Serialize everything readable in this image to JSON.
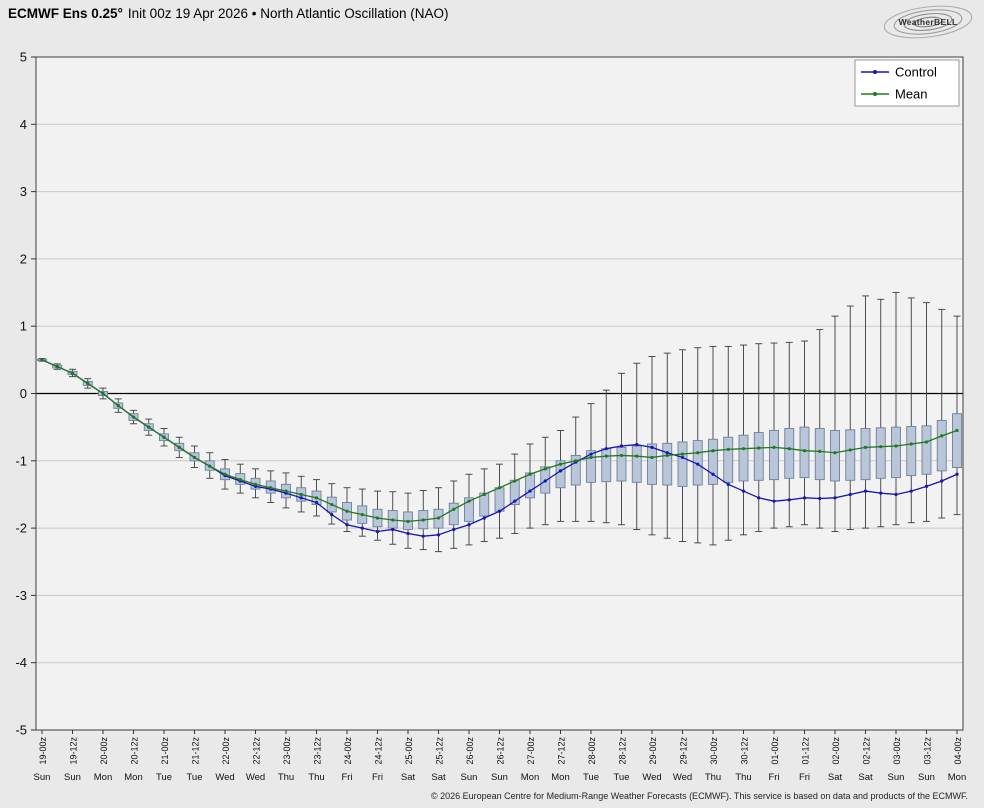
{
  "header": {
    "title_bold": "ECMWF Ens 0.25°",
    "title_rest": "Init 00z 19 Apr 2026 • North Atlantic Oscillation (NAO)",
    "logo_text": "WeatherBELL"
  },
  "footer": {
    "copyright": "© 2026 European Centre for Medium-Range Weather Forecasts (ECMWF). This service is based on data and products of the ECMWF."
  },
  "chart_data": {
    "type": "box+line",
    "title": "ECMWF Ens 0.25° Init 00z 19 Apr 2026 • North Atlantic Oscillation (NAO)",
    "ylabel": "",
    "xlabel": "",
    "ylim": [
      -5,
      5
    ],
    "yticks": [
      5,
      4,
      3,
      2,
      1,
      0,
      -1,
      -2,
      -3,
      -4,
      -5
    ],
    "zero_line": true,
    "grid": "horizontal",
    "x_step_hours": 6,
    "x_tick_times": [
      "19-00z",
      "19-12z",
      "20-00z",
      "20-12z",
      "21-00z",
      "21-12z",
      "22-00z",
      "22-12z",
      "23-00z",
      "23-12z",
      "24-00z",
      "24-12z",
      "25-00z",
      "25-12z",
      "26-00z",
      "26-12z",
      "27-00z",
      "27-12z",
      "28-00z",
      "28-12z",
      "29-00z",
      "29-12z",
      "30-00z",
      "30-12z",
      "01-00z",
      "01-12z",
      "02-00z",
      "02-12z",
      "03-00z",
      "03-12z",
      "04-00z"
    ],
    "x_tick_days": [
      "Sun",
      "Sun",
      "Mon",
      "Mon",
      "Tue",
      "Tue",
      "Wed",
      "Wed",
      "Thu",
      "Thu",
      "Fri",
      "Fri",
      "Sat",
      "Sat",
      "Sun",
      "Sun",
      "Mon",
      "Mon",
      "Tue",
      "Tue",
      "Wed",
      "Wed",
      "Thu",
      "Thu",
      "Fri",
      "Fri",
      "Sat",
      "Sat",
      "Sun",
      "Sun",
      "Mon"
    ],
    "legend": {
      "position": "top-right",
      "entries": [
        "Control",
        "Mean"
      ]
    },
    "series": [
      {
        "name": "Control",
        "color": "#1515b5",
        "values": [
          0.5,
          0.4,
          0.3,
          0.15,
          0.0,
          -0.18,
          -0.35,
          -0.5,
          -0.65,
          -0.8,
          -0.95,
          -1.08,
          -1.22,
          -1.3,
          -1.38,
          -1.42,
          -1.48,
          -1.55,
          -1.62,
          -1.8,
          -1.95,
          -2.0,
          -2.05,
          -2.02,
          -2.08,
          -2.12,
          -2.1,
          -2.02,
          -1.95,
          -1.85,
          -1.75,
          -1.6,
          -1.45,
          -1.3,
          -1.15,
          -1.02,
          -0.9,
          -0.82,
          -0.78,
          -0.76,
          -0.8,
          -0.88,
          -0.95,
          -1.05,
          -1.2,
          -1.35,
          -1.45,
          -1.55,
          -1.6,
          -1.58,
          -1.55,
          -1.56,
          -1.55,
          -1.5,
          -1.45,
          -1.48,
          -1.5,
          -1.45,
          -1.38,
          -1.3,
          -1.2
        ]
      },
      {
        "name": "Mean",
        "color": "#1f7a1f",
        "values": [
          0.5,
          0.4,
          0.3,
          0.15,
          0.0,
          -0.18,
          -0.35,
          -0.5,
          -0.65,
          -0.8,
          -0.95,
          -1.08,
          -1.2,
          -1.28,
          -1.35,
          -1.4,
          -1.45,
          -1.5,
          -1.55,
          -1.65,
          -1.75,
          -1.8,
          -1.85,
          -1.88,
          -1.9,
          -1.88,
          -1.85,
          -1.72,
          -1.6,
          -1.5,
          -1.4,
          -1.3,
          -1.2,
          -1.12,
          -1.05,
          -1.0,
          -0.95,
          -0.93,
          -0.92,
          -0.93,
          -0.95,
          -0.92,
          -0.9,
          -0.88,
          -0.85,
          -0.83,
          -0.82,
          -0.81,
          -0.8,
          -0.82,
          -0.85,
          -0.86,
          -0.88,
          -0.84,
          -0.8,
          -0.79,
          -0.78,
          -0.75,
          -0.72,
          -0.63,
          -0.55
        ]
      }
    ],
    "boxes": {
      "description": "Ensemble spread per 6h step: [whisker_low, box_low, box_high, whisker_high]",
      "color_fill": "#b9c6da",
      "color_edge": "#6e7f99",
      "whisker_color": "#3c3c3c",
      "values": [
        [
          0.48,
          0.49,
          0.51,
          0.52
        ],
        [
          0.36,
          0.38,
          0.42,
          0.44
        ],
        [
          0.25,
          0.28,
          0.33,
          0.36
        ],
        [
          0.08,
          0.12,
          0.18,
          0.22
        ],
        [
          -0.08,
          -0.03,
          0.03,
          0.08
        ],
        [
          -0.28,
          -0.22,
          -0.14,
          -0.08
        ],
        [
          -0.45,
          -0.4,
          -0.3,
          -0.25
        ],
        [
          -0.62,
          -0.55,
          -0.45,
          -0.38
        ],
        [
          -0.78,
          -0.7,
          -0.6,
          -0.52
        ],
        [
          -0.95,
          -0.85,
          -0.74,
          -0.65
        ],
        [
          -1.1,
          -1.0,
          -0.88,
          -0.78
        ],
        [
          -1.26,
          -1.14,
          -1.0,
          -0.88
        ],
        [
          -1.42,
          -1.28,
          -1.12,
          -0.98
        ],
        [
          -1.48,
          -1.35,
          -1.19,
          -1.05
        ],
        [
          -1.55,
          -1.42,
          -1.26,
          -1.12
        ],
        [
          -1.62,
          -1.48,
          -1.3,
          -1.15
        ],
        [
          -1.7,
          -1.55,
          -1.35,
          -1.18
        ],
        [
          -1.76,
          -1.6,
          -1.4,
          -1.23
        ],
        [
          -1.82,
          -1.65,
          -1.45,
          -1.28
        ],
        [
          -1.94,
          -1.76,
          -1.54,
          -1.34
        ],
        [
          -2.05,
          -1.88,
          -1.62,
          -1.4
        ],
        [
          -2.12,
          -1.93,
          -1.67,
          -1.42
        ],
        [
          -2.18,
          -1.98,
          -1.72,
          -1.45
        ],
        [
          -2.24,
          -2.0,
          -1.74,
          -1.46
        ],
        [
          -2.3,
          -2.02,
          -1.76,
          -1.48
        ],
        [
          -2.32,
          -2.01,
          -1.74,
          -1.44
        ],
        [
          -2.35,
          -2.0,
          -1.72,
          -1.4
        ],
        [
          -2.3,
          -1.95,
          -1.63,
          -1.3
        ],
        [
          -2.25,
          -1.9,
          -1.55,
          -1.2
        ],
        [
          -2.2,
          -1.82,
          -1.48,
          -1.12
        ],
        [
          -2.15,
          -1.75,
          -1.4,
          -1.05
        ],
        [
          -2.08,
          -1.65,
          -1.29,
          -0.9
        ],
        [
          -2.0,
          -1.55,
          -1.18,
          -0.75
        ],
        [
          -1.95,
          -1.48,
          -1.09,
          -0.65
        ],
        [
          -1.9,
          -1.4,
          -1.0,
          -0.55
        ],
        [
          -1.9,
          -1.36,
          -0.92,
          -0.35
        ],
        [
          -1.9,
          -1.32,
          -0.85,
          -0.15
        ],
        [
          -1.92,
          -1.31,
          -0.82,
          0.05
        ],
        [
          -1.95,
          -1.3,
          -0.8,
          0.3
        ],
        [
          -2.02,
          -1.32,
          -0.78,
          0.45
        ],
        [
          -2.1,
          -1.35,
          -0.75,
          0.55
        ],
        [
          -2.15,
          -1.36,
          -0.74,
          0.6
        ],
        [
          -2.2,
          -1.38,
          -0.72,
          0.65
        ],
        [
          -2.22,
          -1.36,
          -0.7,
          0.68
        ],
        [
          -2.25,
          -1.35,
          -0.68,
          0.7
        ],
        [
          -2.18,
          -1.32,
          -0.65,
          0.7
        ],
        [
          -2.1,
          -1.3,
          -0.62,
          0.72
        ],
        [
          -2.05,
          -1.29,
          -0.58,
          0.74
        ],
        [
          -2.0,
          -1.28,
          -0.55,
          0.75
        ],
        [
          -1.98,
          -1.26,
          -0.52,
          0.76
        ],
        [
          -1.95,
          -1.25,
          -0.5,
          0.78
        ],
        [
          -2.0,
          -1.28,
          -0.52,
          0.95
        ],
        [
          -2.05,
          -1.3,
          -0.55,
          1.15
        ],
        [
          -2.02,
          -1.29,
          -0.54,
          1.3
        ],
        [
          -2.0,
          -1.28,
          -0.52,
          1.45
        ],
        [
          -1.98,
          -1.26,
          -0.51,
          1.4
        ],
        [
          -1.95,
          -1.25,
          -0.5,
          1.5
        ],
        [
          -1.92,
          -1.22,
          -0.49,
          1.42
        ],
        [
          -1.9,
          -1.2,
          -0.48,
          1.35
        ],
        [
          -1.85,
          -1.15,
          -0.4,
          1.25
        ],
        [
          -1.8,
          -1.1,
          -0.3,
          1.15
        ]
      ]
    }
  }
}
